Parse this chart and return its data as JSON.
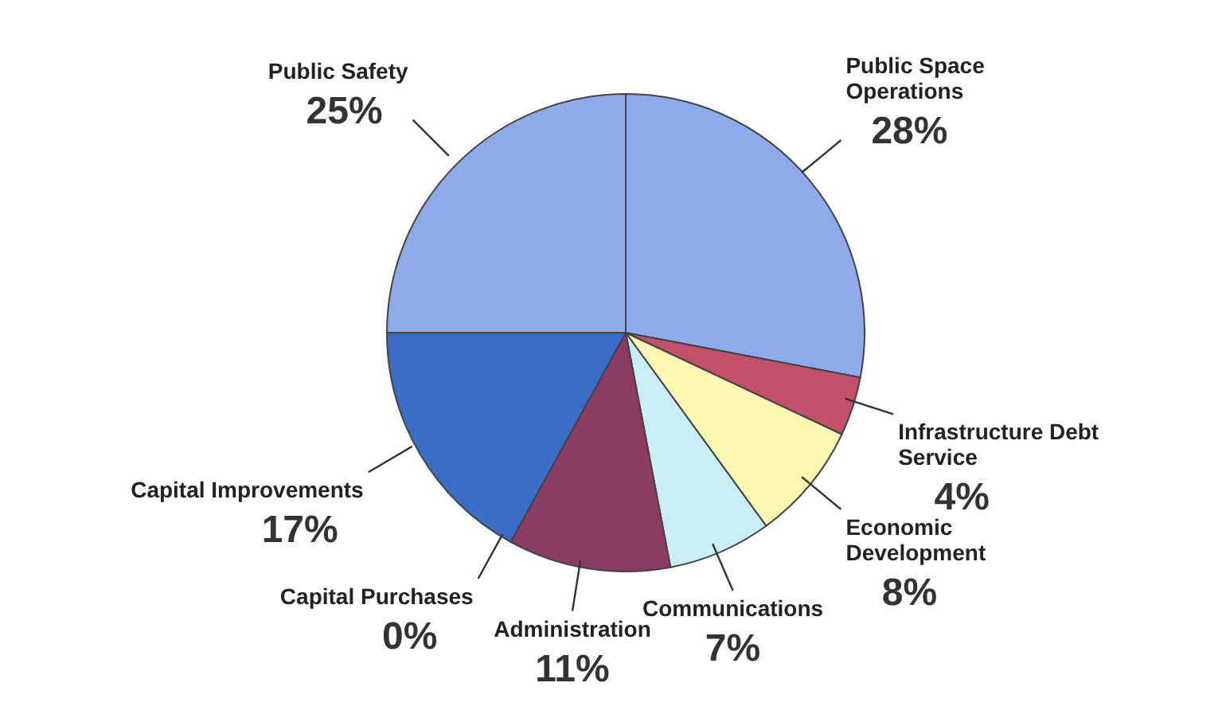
{
  "chart_data": {
    "type": "pie",
    "categories": [
      "Public Space Operations",
      "Infrastructure Debt Service",
      "Economic Development",
      "Communications",
      "Administration",
      "Capital Purchases",
      "Capital Improvements",
      "Public Safety"
    ],
    "values": [
      28,
      4,
      8,
      7,
      11,
      0,
      17,
      25
    ],
    "colors": [
      "#8eaaec",
      "#c4506c",
      "#fcf8b4",
      "#c8eef8",
      "#8c3c62",
      "#5a5a9a",
      "#3a6cc8",
      "#8eaae8"
    ],
    "value_labels": [
      "28%",
      "4%",
      "8%",
      "7%",
      "11%",
      "0%",
      "17%",
      "25%"
    ]
  }
}
